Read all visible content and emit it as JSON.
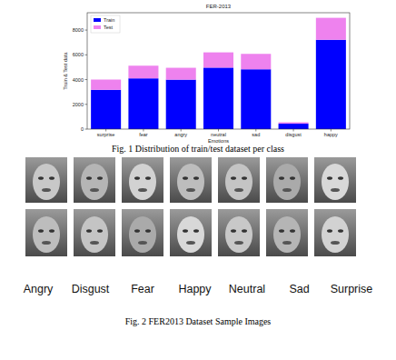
{
  "chart_data": {
    "type": "bar",
    "title": "FER-2013",
    "x_label": "Emotions",
    "y_label": "Train & Test data",
    "categories": [
      "surprise",
      "fear",
      "angry",
      "neutral",
      "sad",
      "disgust",
      "happy"
    ],
    "series": [
      {
        "name": "Train",
        "color": "#0000ff",
        "values": [
          3171,
          4097,
          3995,
          4965,
          4830,
          436,
          7215
        ]
      },
      {
        "name": "Test",
        "color": "#ee82ee",
        "values": [
          831,
          1024,
          958,
          1233,
          1247,
          111,
          1774
        ]
      }
    ],
    "stacked": true,
    "ylim": [
      0,
      9400
    ],
    "yticks": [
      0,
      2000,
      4000,
      6000,
      8000
    ],
    "grid": false,
    "legend": "upper left"
  },
  "figure1": {
    "caption": "Fig. 1 Distribution of train/test dataset per class"
  },
  "figure2": {
    "labels": [
      "Angry",
      "Disgust",
      "Fear",
      "Happy",
      "Neutral",
      "Sad",
      "Surprise"
    ],
    "caption": "Fig. 2 FER2013 Dataset Sample Images"
  }
}
